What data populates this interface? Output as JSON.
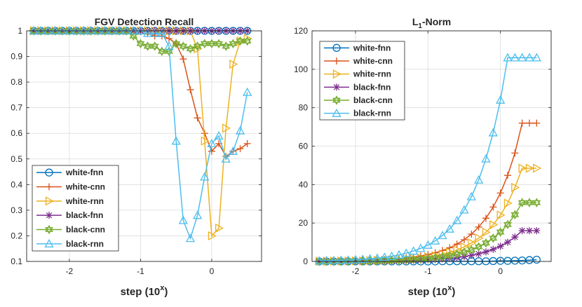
{
  "colors": {
    "white-fnn": "#0072BD",
    "white-cnn": "#D95319",
    "white-rnn": "#EDB120",
    "black-fnn": "#7E2F8E",
    "black-cnn": "#77AC30",
    "black-rnn": "#4DBEEE"
  },
  "chart_data": [
    {
      "type": "line",
      "title": "FGV Detection Recall",
      "xlabel": "step (10^x)",
      "xlabel_base": "step (10",
      "xlabel_sup": "x",
      "xlabel_close": ")",
      "ylabel": "",
      "xlim": [
        -2.6,
        0.7
      ],
      "ylim": [
        0.1,
        1.0
      ],
      "xticks": [
        -2,
        -1,
        0
      ],
      "xtick_labels": [
        "-2",
        "-1",
        "0"
      ],
      "yticks": [
        0.1,
        0.2,
        0.3,
        0.4,
        0.5,
        0.6,
        0.7,
        0.8,
        0.9,
        1.0
      ],
      "ytick_labels": [
        "0.1",
        "0.2",
        "0.3",
        "0.4",
        "0.5",
        "0.6",
        "0.7",
        "0.8",
        "0.9",
        "1"
      ],
      "grid": true,
      "legend_position": "bottom-left",
      "x": [
        -2.5,
        -2.4,
        -2.3,
        -2.2,
        -2.1,
        -2.0,
        -1.9,
        -1.8,
        -1.7,
        -1.6,
        -1.5,
        -1.4,
        -1.3,
        -1.2,
        -1.1,
        -1.0,
        -0.9,
        -0.8,
        -0.7,
        -0.6,
        -0.5,
        -0.4,
        -0.3,
        -0.2,
        -0.1,
        0.0,
        0.1,
        0.2,
        0.3,
        0.4,
        0.5
      ],
      "series": [
        {
          "name": "white-fnn",
          "marker": "circle",
          "values": [
            1,
            1,
            1,
            1,
            1,
            1,
            1,
            1,
            1,
            1,
            1,
            1,
            1,
            1,
            1,
            1,
            1,
            1,
            1,
            1,
            1,
            1,
            1,
            1,
            1,
            1,
            1,
            1,
            1,
            1,
            1
          ]
        },
        {
          "name": "white-cnn",
          "marker": "plus",
          "values": [
            1,
            1,
            1,
            1,
            1,
            1,
            1,
            1,
            1,
            1,
            1,
            1,
            1,
            1,
            1,
            1,
            0.99,
            0.98,
            0.98,
            0.97,
            0.95,
            0.89,
            0.77,
            0.66,
            0.6,
            0.53,
            0.56,
            0.51,
            0.53,
            0.54,
            0.56
          ]
        },
        {
          "name": "white-rnn",
          "marker": "triangle-right",
          "values": [
            1,
            1,
            1,
            1,
            1,
            1,
            1,
            1,
            1,
            1,
            1,
            1,
            1,
            1,
            1,
            1,
            1,
            1,
            1,
            1,
            1,
            1,
            1,
            0.93,
            0.57,
            0.2,
            0.23,
            0.62,
            0.87,
            0.96,
            0.97
          ]
        },
        {
          "name": "black-fnn",
          "marker": "asterisk",
          "values": [
            1,
            1,
            1,
            1,
            1,
            1,
            1,
            1,
            1,
            1,
            1,
            1,
            1,
            1,
            1,
            1,
            1,
            1,
            1,
            1,
            1,
            1,
            1,
            1,
            1,
            1,
            1,
            1,
            1,
            1,
            1
          ]
        },
        {
          "name": "black-cnn",
          "marker": "hexagram",
          "values": [
            1,
            1,
            1,
            1,
            1,
            1,
            1,
            1,
            1,
            1,
            1,
            1,
            1,
            1,
            0.98,
            0.95,
            0.94,
            0.94,
            0.92,
            0.92,
            0.95,
            0.94,
            0.93,
            0.94,
            0.95,
            0.95,
            0.95,
            0.94,
            0.95,
            0.96,
            0.96
          ]
        },
        {
          "name": "black-rnn",
          "marker": "triangle-up",
          "values": [
            1,
            1,
            1,
            1,
            1,
            1,
            1,
            1,
            1,
            1,
            1,
            1,
            1,
            1,
            1,
            1,
            0.99,
            0.99,
            0.99,
            0.94,
            0.57,
            0.26,
            0.19,
            0.28,
            0.43,
            0.56,
            0.59,
            0.5,
            0.53,
            0.61,
            0.76
          ]
        }
      ]
    },
    {
      "type": "line",
      "title": "L1-Norm",
      "title_base": "L",
      "title_sub": "1",
      "title_rest": "-Norm",
      "xlabel": "step (10^x)",
      "xlabel_base": "step (10",
      "xlabel_sup": "x",
      "xlabel_close": ")",
      "ylabel": "",
      "xlim": [
        -2.6,
        0.7
      ],
      "ylim": [
        0,
        120
      ],
      "xticks": [
        -2,
        -1,
        0
      ],
      "xtick_labels": [
        "-2",
        "-1",
        "0"
      ],
      "yticks": [
        0,
        20,
        40,
        60,
        80,
        100,
        120
      ],
      "ytick_labels": [
        "0",
        "20",
        "40",
        "60",
        "80",
        "100",
        "120"
      ],
      "grid": true,
      "legend_position": "top-left",
      "x": [
        -2.5,
        -2.4,
        -2.3,
        -2.2,
        -2.1,
        -2.0,
        -1.9,
        -1.8,
        -1.7,
        -1.6,
        -1.5,
        -1.4,
        -1.3,
        -1.2,
        -1.1,
        -1.0,
        -0.9,
        -0.8,
        -0.7,
        -0.6,
        -0.5,
        -0.4,
        -0.3,
        -0.2,
        -0.1,
        0.0,
        0.1,
        0.2,
        0.3,
        0.4,
        0.5
      ],
      "series": [
        {
          "name": "white-fnn",
          "marker": "circle",
          "values": [
            0.0,
            0.0,
            0.0,
            0.0,
            0.0,
            0.0,
            0.0,
            0.0,
            0.0,
            0.0,
            0.0,
            0.0,
            0.0,
            0.0,
            0.0,
            0.0,
            0.0,
            0.1,
            0.1,
            0.1,
            0.1,
            0.1,
            0.1,
            0.1,
            0.2,
            0.3,
            0.3,
            0.4,
            0.5,
            0.7,
            0.9
          ]
        },
        {
          "name": "white-cnn",
          "marker": "plus",
          "values": [
            0.2,
            0.2,
            0.2,
            0.3,
            0.3,
            0.4,
            0.5,
            0.6,
            0.8,
            1.0,
            1.2,
            1.5,
            1.9,
            2.3,
            2.9,
            3.6,
            4.5,
            5.7,
            7.1,
            9.0,
            11.3,
            14.2,
            17.9,
            22.5,
            28.3,
            35.6,
            44.8,
            56.4,
            72.0,
            72.0,
            72.0
          ]
        },
        {
          "name": "white-rnn",
          "marker": "triangle-right",
          "values": [
            0.1,
            0.1,
            0.2,
            0.2,
            0.2,
            0.3,
            0.3,
            0.4,
            0.5,
            0.6,
            0.8,
            1.0,
            1.2,
            1.5,
            1.9,
            2.4,
            3.0,
            3.8,
            4.8,
            6.0,
            7.6,
            9.6,
            12.1,
            15.2,
            19.1,
            24.1,
            30.3,
            38.5,
            48.5,
            48.5,
            48.5
          ]
        },
        {
          "name": "black-fnn",
          "marker": "asterisk",
          "values": [
            0.0,
            0.1,
            0.1,
            0.1,
            0.1,
            0.1,
            0.1,
            0.2,
            0.2,
            0.2,
            0.3,
            0.4,
            0.4,
            0.5,
            0.7,
            0.8,
            1.0,
            1.3,
            1.6,
            2.0,
            2.5,
            3.2,
            4.0,
            5.0,
            6.3,
            7.9,
            10.0,
            12.7,
            16.0,
            16.0,
            16.0
          ]
        },
        {
          "name": "black-cnn",
          "marker": "hexagram",
          "values": [
            0.1,
            0.1,
            0.1,
            0.1,
            0.2,
            0.2,
            0.2,
            0.3,
            0.3,
            0.4,
            0.5,
            0.6,
            0.8,
            1.0,
            1.2,
            1.5,
            1.9,
            2.4,
            3.0,
            3.8,
            4.8,
            6.0,
            7.6,
            9.6,
            12.1,
            15.3,
            19.2,
            24.3,
            30.6,
            30.6,
            30.6
          ]
        },
        {
          "name": "black-rnn",
          "marker": "triangle-up",
          "values": [
            0.3,
            0.4,
            0.5,
            0.6,
            0.7,
            0.9,
            1.1,
            1.4,
            1.7,
            2.2,
            2.7,
            3.4,
            4.3,
            5.4,
            6.8,
            8.5,
            10.7,
            13.5,
            16.9,
            21.3,
            26.8,
            33.7,
            42.4,
            53.4,
            67.0,
            84.0,
            106.0,
            106.0,
            106.0,
            106.0,
            106.0
          ]
        }
      ]
    }
  ]
}
